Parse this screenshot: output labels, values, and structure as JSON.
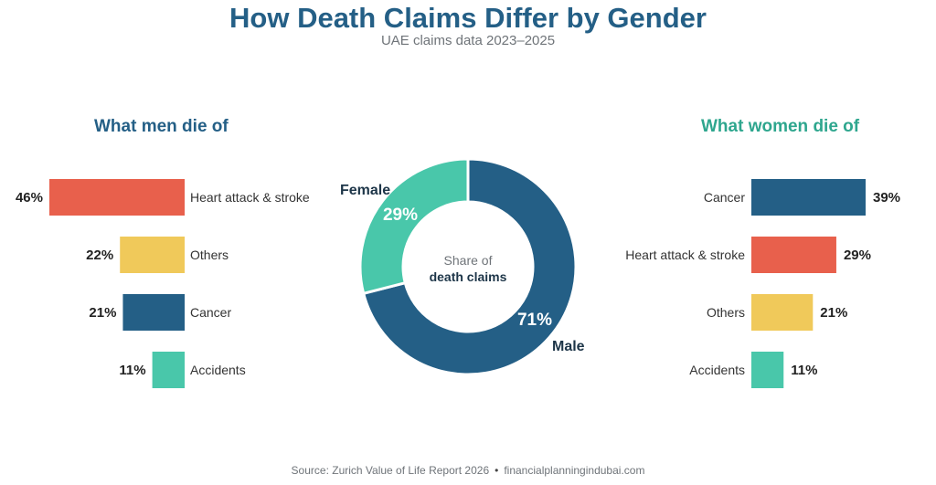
{
  "title": "How Death Claims Differ by Gender",
  "subtitle": "UAE claims data 2023–2025",
  "men_title": "What men die of",
  "women_title": "What women die of",
  "center_label_line1": "Share of",
  "center_label_line2": "death claims",
  "footer_source": "Source: Zurich Value of Life Report 2026",
  "footer_site": "financialplanningindubai.com",
  "colors": {
    "navy": "#245f86",
    "coral": "#e8604c",
    "yellow": "#f0c95a",
    "teal": "#49c7aa",
    "women_title": "#2ea68e"
  },
  "chart_data": [
    {
      "type": "bar",
      "title": "What men die of",
      "categories": [
        "Heart attack & stroke",
        "Others",
        "Cancer",
        "Accidents"
      ],
      "values": [
        46,
        22,
        21,
        11
      ],
      "value_labels": [
        "46%",
        "22%",
        "21%",
        "11%"
      ],
      "colors": [
        "#e8604c",
        "#f0c95a",
        "#245f86",
        "#49c7aa"
      ],
      "orientation": "horizontal",
      "direction": "leftward"
    },
    {
      "type": "pie",
      "categories": [
        "Male",
        "Female"
      ],
      "values": [
        71,
        29
      ],
      "value_labels": [
        "71%",
        "29%"
      ],
      "colors": [
        "#245f86",
        "#49c7aa"
      ],
      "donut": true
    },
    {
      "type": "bar",
      "title": "What women die of",
      "categories": [
        "Cancer",
        "Heart attack & stroke",
        "Others",
        "Accidents"
      ],
      "values": [
        39,
        29,
        21,
        11
      ],
      "value_labels": [
        "39%",
        "29%",
        "21%",
        "11%"
      ],
      "colors": [
        "#245f86",
        "#e8604c",
        "#f0c95a",
        "#49c7aa"
      ],
      "orientation": "horizontal",
      "direction": "rightward"
    }
  ]
}
